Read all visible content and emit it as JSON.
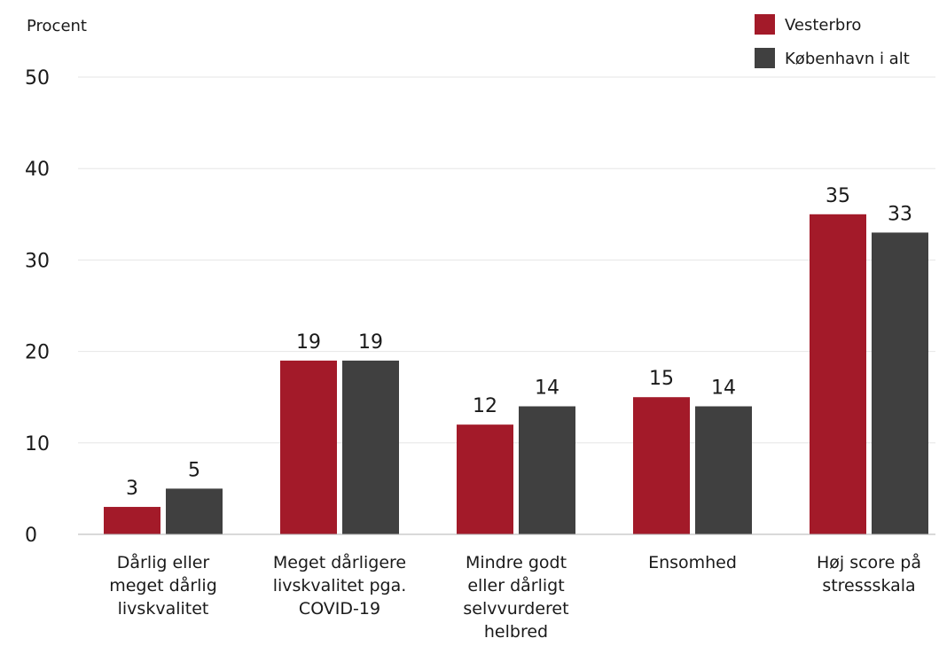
{
  "chart_data": {
    "type": "bar",
    "ylabel": "Procent",
    "ylim": [
      0,
      50
    ],
    "yticks": [
      0,
      10,
      20,
      30,
      40,
      50
    ],
    "grid": true,
    "legend_position": "top-right",
    "categories": [
      [
        "Dårlig eller",
        "meget dårlig",
        "livskvalitet"
      ],
      [
        "Meget dårligere",
        "livskvalitet pga.",
        "COVID-19"
      ],
      [
        "Mindre godt",
        "eller dårligt",
        "selvvurderet",
        "helbred"
      ],
      [
        "Ensomhed"
      ],
      [
        "Høj score på",
        "stressskala"
      ]
    ],
    "series": [
      {
        "name": "Vesterbro",
        "color": "#a31a29",
        "values": [
          3,
          19,
          12,
          15,
          35
        ]
      },
      {
        "name": "København i alt",
        "color": "#404040",
        "values": [
          5,
          19,
          14,
          14,
          33
        ]
      }
    ]
  }
}
